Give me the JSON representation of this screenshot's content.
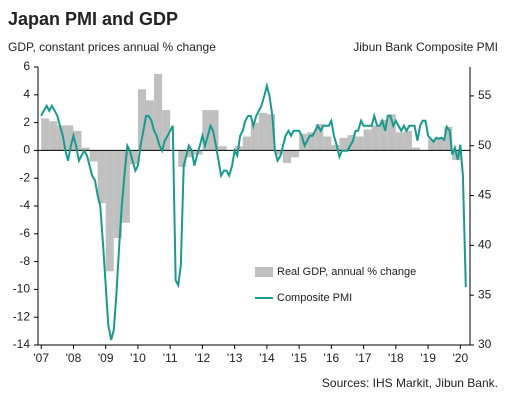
{
  "chart_data": {
    "type": "combo",
    "title": "Japan PMI and GDP",
    "y_axis_label": "GDP, constant prices annual  % change",
    "y2_axis_label": "Jibun Bank Composite PMI",
    "source": "Sources: IHS Markit, Jibun Bank.",
    "xlim": [
      2006.9,
      2020.3
    ],
    "xticks": [
      {
        "value": 2007,
        "label": "'07"
      },
      {
        "value": 2008,
        "label": "'08"
      },
      {
        "value": 2009,
        "label": "'09"
      },
      {
        "value": 2010,
        "label": "'10"
      },
      {
        "value": 2011,
        "label": "'11"
      },
      {
        "value": 2012,
        "label": "'12"
      },
      {
        "value": 2013,
        "label": "'13"
      },
      {
        "value": 2014,
        "label": "'14"
      },
      {
        "value": 2015,
        "label": "'15"
      },
      {
        "value": 2016,
        "label": "'16"
      },
      {
        "value": 2017,
        "label": "'17"
      },
      {
        "value": 2018,
        "label": "'18"
      },
      {
        "value": 2019,
        "label": "'19"
      },
      {
        "value": 2020,
        "label": "'20"
      }
    ],
    "ylim": [
      -14,
      6
    ],
    "yticks": [
      -14,
      -12,
      -10,
      -8,
      -6,
      -4,
      -2,
      0,
      2,
      4,
      6
    ],
    "y2lim": [
      30,
      57.9
    ],
    "y2ticks": [
      30,
      35,
      40,
      45,
      50,
      55
    ],
    "legend": "lower-right",
    "series": [
      {
        "name": "Real GDP, annual % change",
        "type": "bar",
        "color": "#c0c0c0",
        "x": [
          2007,
          2007.25,
          2007.5,
          2007.75,
          2008,
          2008.25,
          2008.5,
          2008.75,
          2009,
          2009.25,
          2009.5,
          2009.75,
          2010,
          2010.25,
          2010.5,
          2010.75,
          2011,
          2011.25,
          2011.5,
          2011.75,
          2012,
          2012.25,
          2012.5,
          2012.75,
          2013,
          2013.25,
          2013.5,
          2013.75,
          2014,
          2014.25,
          2014.5,
          2014.75,
          2015,
          2015.25,
          2015.5,
          2015.75,
          2016,
          2016.25,
          2016.5,
          2016.75,
          2017,
          2017.25,
          2017.5,
          2017.75,
          2018,
          2018.25,
          2018.5,
          2018.75,
          2019,
          2019.25,
          2019.5,
          2019.75
        ],
        "values": [
          2.3,
          2.1,
          1.8,
          1.8,
          1.4,
          0.2,
          -0.8,
          -3.8,
          -8.7,
          -6.3,
          -5.2,
          -1.0,
          4.4,
          3.6,
          5.5,
          2.9,
          0.0,
          -1.2,
          -0.5,
          -0.3,
          2.9,
          2.9,
          0.3,
          0.0,
          0.3,
          1.0,
          2.0,
          2.7,
          2.6,
          -0.3,
          -0.9,
          -0.5,
          1.2,
          1.3,
          1.9,
          1.0,
          0.4,
          0.9,
          1.1,
          1.0,
          1.5,
          1.8,
          2.2,
          2.6,
          1.3,
          1.4,
          0.2,
          0.0,
          0.8,
          0.9,
          1.7,
          -0.7
        ]
      },
      {
        "name": "Composite PMI",
        "type": "line",
        "axis": "y2",
        "color": "#1a9a8f",
        "x": [
          2007,
          2007.08,
          2007.17,
          2007.25,
          2007.33,
          2007.42,
          2007.5,
          2007.58,
          2007.67,
          2007.75,
          2007.83,
          2007.92,
          2008,
          2008.08,
          2008.17,
          2008.25,
          2008.33,
          2008.42,
          2008.5,
          2008.58,
          2008.67,
          2008.75,
          2008.83,
          2008.92,
          2009,
          2009.08,
          2009.17,
          2009.25,
          2009.33,
          2009.42,
          2009.5,
          2009.58,
          2009.67,
          2009.75,
          2009.83,
          2009.92,
          2010,
          2010.08,
          2010.17,
          2010.25,
          2010.33,
          2010.42,
          2010.5,
          2010.58,
          2010.67,
          2010.75,
          2010.83,
          2010.92,
          2011,
          2011.08,
          2011.17,
          2011.25,
          2011.33,
          2011.42,
          2011.5,
          2011.58,
          2011.67,
          2011.75,
          2011.83,
          2011.92,
          2012,
          2012.08,
          2012.17,
          2012.25,
          2012.33,
          2012.42,
          2012.5,
          2012.58,
          2012.67,
          2012.75,
          2012.83,
          2012.92,
          2013,
          2013.08,
          2013.17,
          2013.25,
          2013.33,
          2013.42,
          2013.5,
          2013.58,
          2013.67,
          2013.75,
          2013.83,
          2013.92,
          2014,
          2014.08,
          2014.17,
          2014.25,
          2014.33,
          2014.42,
          2014.5,
          2014.58,
          2014.67,
          2014.75,
          2014.83,
          2014.92,
          2015,
          2015.08,
          2015.17,
          2015.25,
          2015.33,
          2015.42,
          2015.5,
          2015.58,
          2015.67,
          2015.75,
          2015.83,
          2015.92,
          2016,
          2016.08,
          2016.17,
          2016.25,
          2016.33,
          2016.42,
          2016.5,
          2016.58,
          2016.67,
          2016.75,
          2016.83,
          2016.92,
          2017,
          2017.08,
          2017.17,
          2017.25,
          2017.33,
          2017.42,
          2017.5,
          2017.58,
          2017.67,
          2017.75,
          2017.83,
          2017.92,
          2018,
          2018.08,
          2018.17,
          2018.25,
          2018.33,
          2018.42,
          2018.5,
          2018.58,
          2018.67,
          2018.75,
          2018.83,
          2018.92,
          2019,
          2019.08,
          2019.17,
          2019.25,
          2019.33,
          2019.42,
          2019.5,
          2019.58,
          2019.67,
          2019.75,
          2019.83,
          2019.92,
          2020,
          2020.08,
          2020.17
        ],
        "values": [
          53,
          53.5,
          54,
          53.5,
          54,
          53.5,
          53,
          52,
          51,
          49.5,
          48.5,
          50,
          51,
          50,
          48.5,
          49,
          49.5,
          49,
          48,
          47,
          46.5,
          45,
          44,
          40,
          36,
          32,
          30.5,
          31.5,
          35,
          40,
          44,
          47,
          50,
          49.5,
          48.5,
          47.5,
          48,
          50,
          51.5,
          53,
          53,
          52.5,
          51.5,
          51,
          50,
          49.5,
          50.5,
          51,
          51.5,
          52,
          36.5,
          36,
          38,
          48,
          49,
          50,
          49.5,
          48,
          49,
          50,
          51,
          50,
          51,
          52,
          51.5,
          50,
          48.5,
          47,
          47.5,
          47.5,
          47,
          48,
          49.5,
          49,
          51,
          51.5,
          52.5,
          53,
          53,
          52,
          53,
          53.5,
          54,
          55,
          56,
          55,
          53,
          49.5,
          48.5,
          49,
          50,
          51,
          51.5,
          51,
          51.5,
          51.5,
          51.5,
          51,
          50,
          50.5,
          51,
          51,
          51.5,
          52,
          51.5,
          52,
          52,
          52,
          52.5,
          51,
          50,
          48.9,
          49.5,
          49.5,
          49.5,
          50,
          50.5,
          51.5,
          51.5,
          52.5,
          52,
          52,
          52,
          52,
          53,
          52,
          52,
          52.5,
          51.5,
          53,
          53,
          52,
          52.5,
          52,
          51.5,
          52,
          51.5,
          52,
          52,
          52,
          50.5,
          52,
          52.5,
          52.5,
          51,
          50.7,
          50.4,
          50.8,
          50.7,
          50.8,
          50.6,
          51.9,
          51.5,
          49.1,
          49.8,
          48.6,
          50.1,
          47,
          35.8
        ]
      }
    ]
  }
}
